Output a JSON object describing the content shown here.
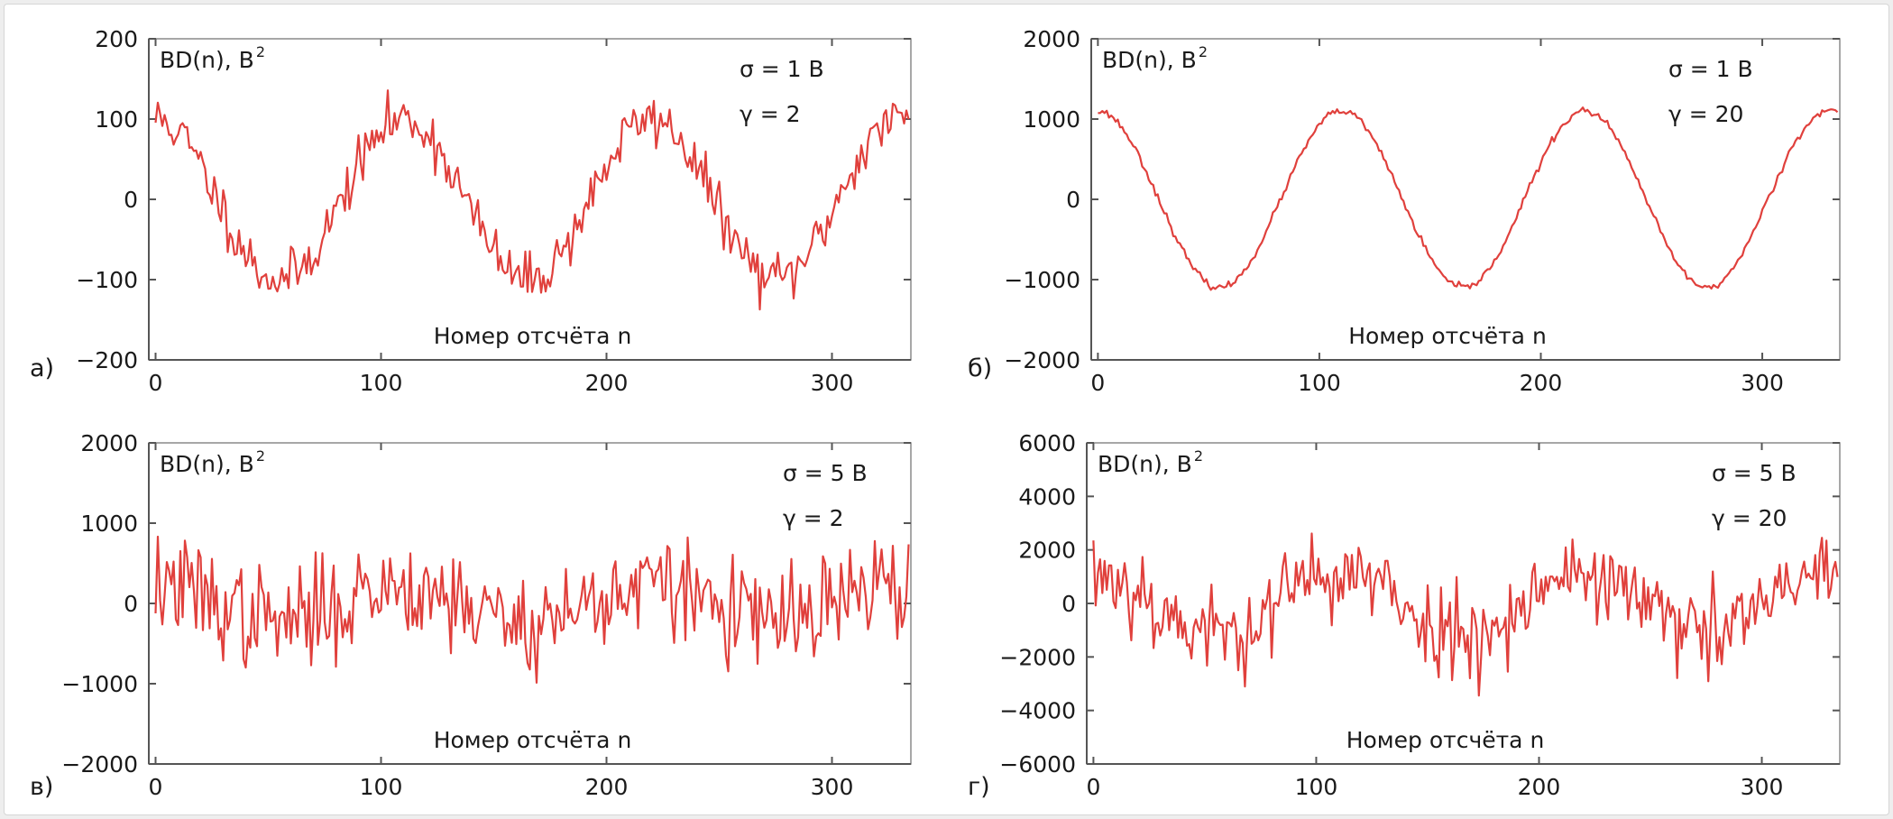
{
  "chart_data": [
    {
      "type": "line",
      "panel_label": "а)",
      "ylabel": "BD(n), В",
      "ylabel_sup": "2",
      "xlabel": "Номер отсчёта n",
      "annotations": [
        "σ = 1 В",
        "γ = 2"
      ],
      "xlim": [
        -3,
        335
      ],
      "ylim": [
        -200,
        200
      ],
      "xticks": [
        0,
        100,
        200,
        300
      ],
      "xtick_labels": [
        "0",
        "100",
        "200",
        "300"
      ],
      "yticks": [
        200,
        100,
        0,
        -100,
        -200
      ],
      "ytick_labels": [
        "200",
        "100",
        "0",
        "−100",
        "−200"
      ],
      "series": [
        {
          "name": "BD(n)",
          "amplitude": 100,
          "period": 110,
          "noise": 16,
          "seed": 11,
          "length": 335
        }
      ]
    },
    {
      "type": "line",
      "panel_label": "б)",
      "ylabel": "BD(n), В",
      "ylabel_sup": "2",
      "xlabel": "Номер отсчёта n",
      "annotations": [
        "σ = 1 В",
        "γ = 20"
      ],
      "xlim": [
        -3,
        335
      ],
      "ylim": [
        -2000,
        2000
      ],
      "xticks": [
        0,
        100,
        200,
        300
      ],
      "xtick_labels": [
        "0",
        "100",
        "200",
        "300"
      ],
      "yticks": [
        2000,
        1000,
        0,
        -1000,
        -2000
      ],
      "ytick_labels": [
        "2000",
        "1000",
        "0",
        "−1000",
        "−2000"
      ],
      "series": [
        {
          "name": "BD(n)",
          "amplitude": 1100,
          "period": 110,
          "noise": 22,
          "seed": 23,
          "length": 335
        }
      ]
    },
    {
      "type": "line",
      "panel_label": "в)",
      "ylabel": "BD(n), В",
      "ylabel_sup": "2",
      "xlabel": "Номер отсчёта n",
      "annotations": [
        "σ = 5 В",
        "γ = 2"
      ],
      "xlim": [
        -3,
        335
      ],
      "ylim": [
        -2000,
        2000
      ],
      "xticks": [
        0,
        100,
        200,
        300
      ],
      "xtick_labels": [
        "0",
        "100",
        "200",
        "300"
      ],
      "yticks": [
        2000,
        1000,
        0,
        -1000,
        -2000
      ],
      "ytick_labels": [
        "2000",
        "1000",
        "0",
        "−1000",
        "−2000"
      ],
      "series": [
        {
          "name": "BD(n)",
          "amplitude": 230,
          "period": 110,
          "noise": 320,
          "seed": 37,
          "length": 335
        }
      ]
    },
    {
      "type": "line",
      "panel_label": "г)",
      "ylabel": "BD(n), В",
      "ylabel_sup": "2",
      "xlabel": "Номер отсчёта n",
      "annotations": [
        "σ = 5 В",
        "γ = 20"
      ],
      "xlim": [
        -3,
        335
      ],
      "ylim": [
        -6000,
        6000
      ],
      "xticks": [
        0,
        100,
        200,
        300
      ],
      "xtick_labels": [
        "0",
        "100",
        "200",
        "300"
      ],
      "yticks": [
        6000,
        4000,
        2000,
        0,
        -2000,
        -4000,
        -6000
      ],
      "ytick_labels": [
        "6000",
        "4000",
        "2000",
        "0",
        "−2000",
        "−4000",
        "−6000"
      ],
      "series": [
        {
          "name": "BD(n)",
          "amplitude": 1150,
          "period": 110,
          "noise": 850,
          "seed": 53,
          "length": 335
        }
      ]
    }
  ],
  "colors": {
    "line": "#e0403c",
    "axis": "#555555",
    "frame": "#8a8a8a"
  }
}
